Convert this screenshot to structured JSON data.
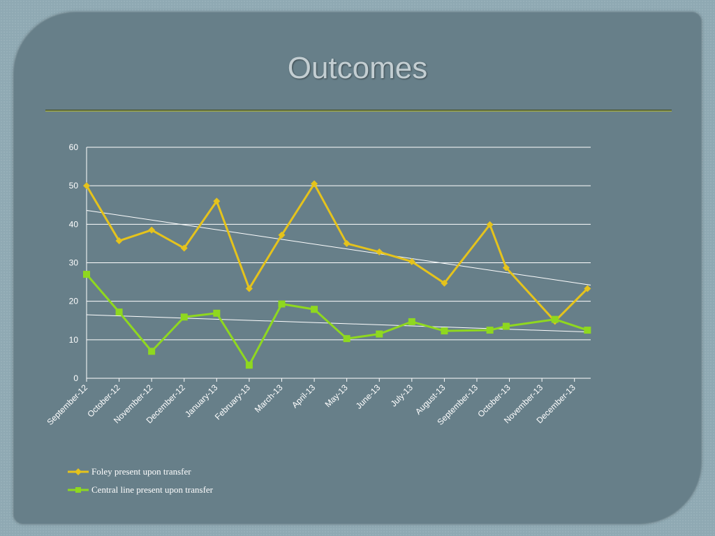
{
  "slide": {
    "title": "Outcomes"
  },
  "colors": {
    "foley": "#e5c31c",
    "central": "#8fd81f",
    "grid": "#ffffff",
    "trend": "#ffffff"
  },
  "chart_data": {
    "type": "line",
    "categories": [
      "September-12",
      "October-12",
      "November-12",
      "December-12",
      "January-13",
      "February-13",
      "March-13",
      "April-13",
      "May-13",
      "June-13",
      "July-13",
      "August-13",
      "September-13",
      "October-13",
      "November-13",
      "December-13"
    ],
    "x_positions": [
      0,
      1,
      2,
      3,
      4,
      5,
      6,
      7,
      8,
      9,
      10,
      11,
      12,
      13,
      14,
      15
    ],
    "ylim": [
      0,
      60
    ],
    "yticks": [
      0,
      10,
      20,
      30,
      40,
      50,
      60
    ],
    "grid": true,
    "legend_position": "bottom-left",
    "series": [
      {
        "name": "Foley present upon transfer",
        "marker": "diamond",
        "x": [
          0,
          1,
          2,
          3,
          4,
          5,
          6,
          7,
          8,
          9,
          10,
          11,
          12.4,
          12.9,
          14.4,
          15.4
        ],
        "values": [
          50,
          35.7,
          38.5,
          33.8,
          46,
          23.3,
          37.2,
          50.5,
          35,
          32.8,
          30.3,
          24.7,
          39.9,
          28.7,
          14.8,
          23.3
        ],
        "trendline": [
          43.6,
          24.2
        ]
      },
      {
        "name": "Central line present upon transfer",
        "marker": "square",
        "x": [
          0,
          1,
          2,
          3,
          4,
          5,
          6,
          7,
          8,
          9,
          10,
          11,
          12.4,
          12.9,
          14.4,
          15.4
        ],
        "values": [
          27,
          17.2,
          7,
          15.9,
          16.9,
          3.4,
          19.3,
          17.9,
          10.3,
          11.5,
          14.7,
          12.3,
          12.5,
          13.5,
          15.3,
          12.5
        ],
        "trendline": [
          16.5,
          12
        ]
      }
    ]
  }
}
